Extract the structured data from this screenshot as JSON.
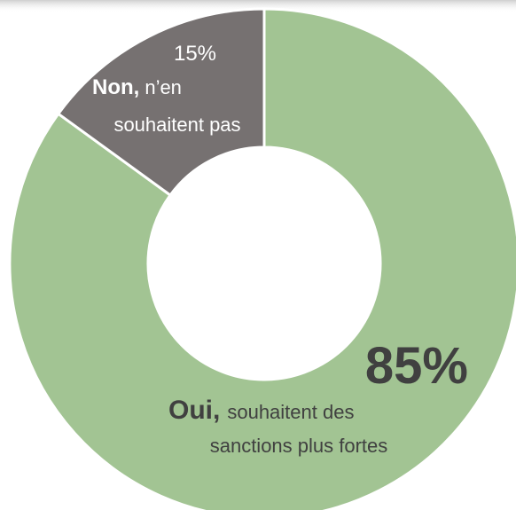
{
  "chart_data": {
    "type": "donut",
    "series": [
      {
        "name": "Oui",
        "color": "#a2c493",
        "values": [
          85,
          15
        ],
        "value_labels": [
          "85%",
          "15%"
        ]
      }
    ],
    "colors": [
      "#a2c493",
      "#767171"
    ],
    "labels": [
      {
        "lead": "Oui,",
        "rest": [
          "souhaitent des",
          "sanctions plus fortes"
        ]
      },
      {
        "lead": "Non,",
        "rest": [
          "n’en",
          "souhaitent pas"
        ]
      }
    ]
  }
}
